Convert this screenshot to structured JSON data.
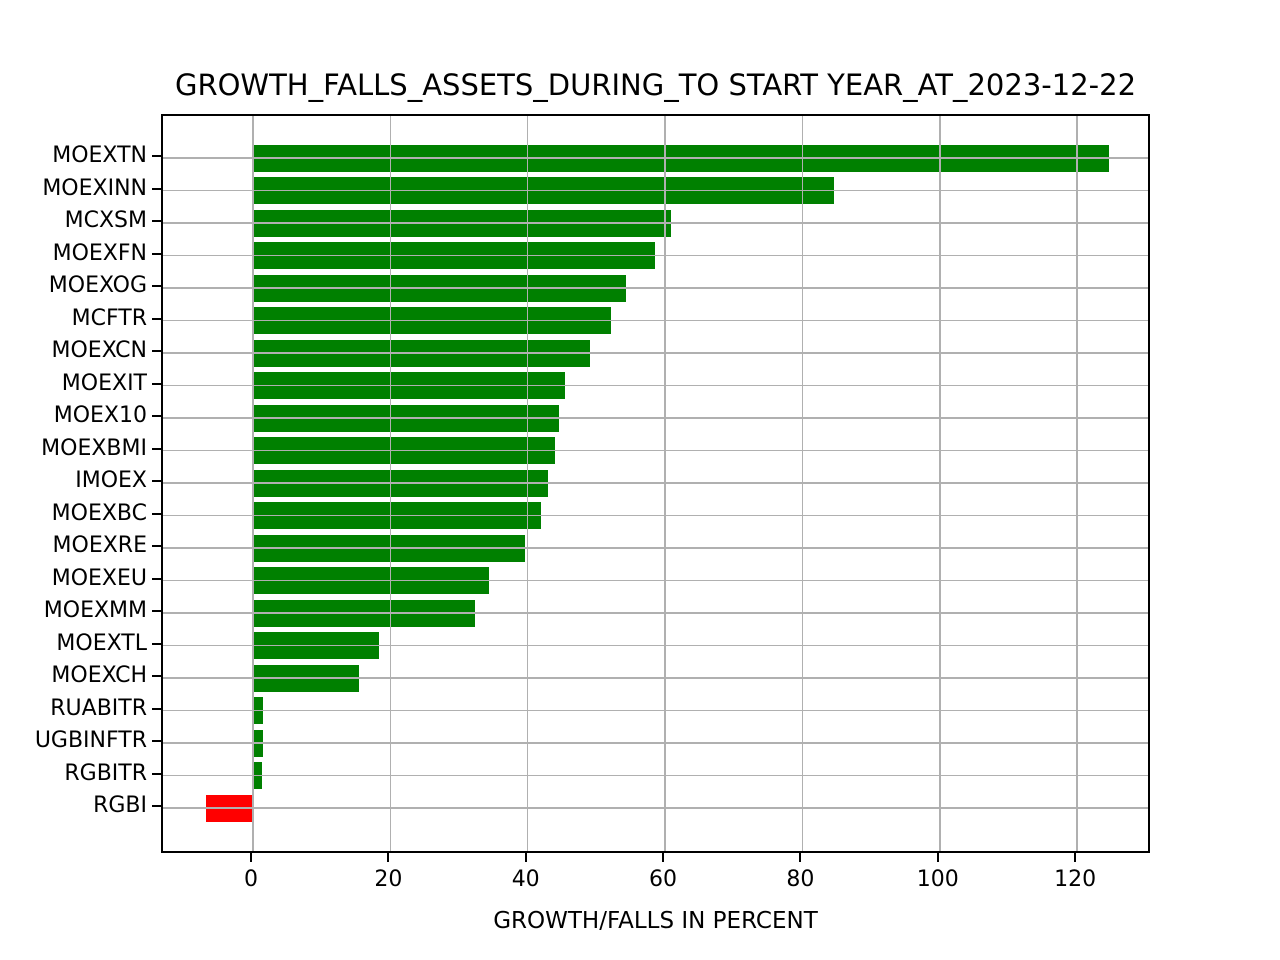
{
  "title": "GROWTH_FALLS_ASSETS_DURING_TO START YEAR_AT_2023-12-22",
  "chart_data": {
    "type": "bar",
    "orientation": "horizontal",
    "title": "GROWTH_FALLS_ASSETS_DURING_TO START YEAR_AT_2023-12-22",
    "xlabel": "GROWTH/FALLS IN PERCENT",
    "ylabel": "",
    "categories": [
      "MOEXTN",
      "MOEXINN",
      "MCXSM",
      "MOEXFN",
      "MOEXOG",
      "MCFTR",
      "MOEXCN",
      "MOEXIT",
      "MOEX10",
      "MOEXBMI",
      "IMOEX",
      "MOEXBC",
      "MOEXRE",
      "MOEXEU",
      "MOEXMM",
      "MOEXTL",
      "MOEXCH",
      "RUABITR",
      "UGBINFTR",
      "RGBITR",
      "RGBI"
    ],
    "values": [
      124.6,
      84.6,
      60.8,
      58.5,
      54.3,
      52.1,
      49.0,
      45.4,
      44.5,
      44.0,
      42.9,
      41.9,
      39.6,
      34.4,
      32.3,
      18.3,
      15.5,
      1.5,
      1.4,
      1.3,
      -6.9
    ],
    "x_ticks": [
      0,
      20,
      40,
      60,
      80,
      100,
      120
    ],
    "xlim": [
      -13.1,
      130.9
    ],
    "grid": true,
    "legend": false,
    "colors": {
      "positive_bar": "#008000",
      "negative_bar": "#ff0000",
      "grid": "#b0b0b0",
      "spine": "#000000",
      "text": "#000000",
      "background": "#ffffff"
    }
  }
}
